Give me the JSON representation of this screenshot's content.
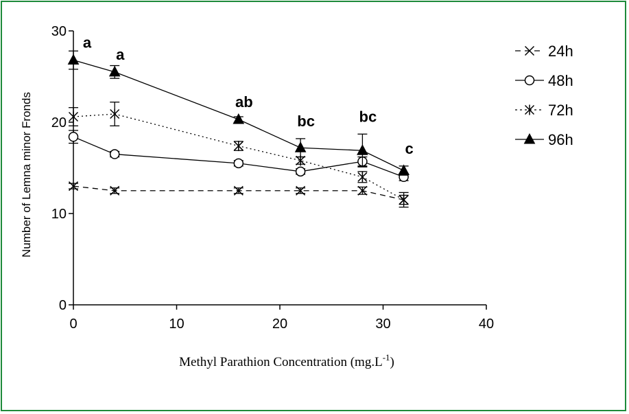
{
  "chart_data": {
    "type": "line",
    "xlabel": "Methyl Parathion Concentration (mg.L",
    "xlabel_sup": "-1",
    "xlabel_close": ")",
    "ylabel": "Number of Lemna minor Fronds",
    "xlim": [
      0,
      40
    ],
    "ylim": [
      0,
      30
    ],
    "xticks": [
      0,
      10,
      20,
      30,
      40
    ],
    "yticks": [
      0,
      10,
      20,
      30
    ],
    "grid": false,
    "legend_position": "right",
    "x": [
      0,
      4,
      16,
      22,
      28,
      32
    ],
    "series": [
      {
        "name": "24h",
        "values": [
          13.0,
          12.5,
          12.5,
          12.5,
          12.5,
          11.5
        ],
        "errors": [
          0.3,
          0.3,
          0.3,
          0.3,
          0.4,
          0.8
        ],
        "marker": "x",
        "dash": "8,6",
        "color": "#000000"
      },
      {
        "name": "48h",
        "values": [
          18.4,
          16.5,
          15.5,
          14.6,
          15.7,
          14.0
        ],
        "errors": [
          0.7,
          0.3,
          0.3,
          0.3,
          0.5,
          0.4
        ],
        "marker": "circle",
        "dash": "",
        "color": "#000000"
      },
      {
        "name": "72h",
        "values": [
          20.6,
          20.9,
          17.4,
          15.8,
          14.0,
          11.5
        ],
        "errors": [
          1.0,
          1.3,
          0.5,
          0.4,
          0.6,
          0.5
        ],
        "marker": "asterisk",
        "dash": "2,4",
        "color": "#000000"
      },
      {
        "name": "96h",
        "values": [
          26.8,
          25.5,
          20.3,
          17.2,
          16.9,
          14.7
        ],
        "errors": [
          1.0,
          0.7,
          0.3,
          1.0,
          1.8,
          0.5
        ],
        "marker": "triangle",
        "dash": "",
        "color": "#000000"
      }
    ],
    "annotations": [
      {
        "x": 0,
        "y": 26.8,
        "text": "a"
      },
      {
        "x": 4,
        "y": 25.5,
        "text": "a"
      },
      {
        "x": 16,
        "y": 20.3,
        "text": "ab"
      },
      {
        "x": 22,
        "y": 18.2,
        "text": "bc"
      },
      {
        "x": 28,
        "y": 18.7,
        "text": "bc"
      },
      {
        "x": 32,
        "y": 15.2,
        "text": "c"
      }
    ]
  },
  "colors": {
    "frame_border": "#1e8a3a"
  }
}
